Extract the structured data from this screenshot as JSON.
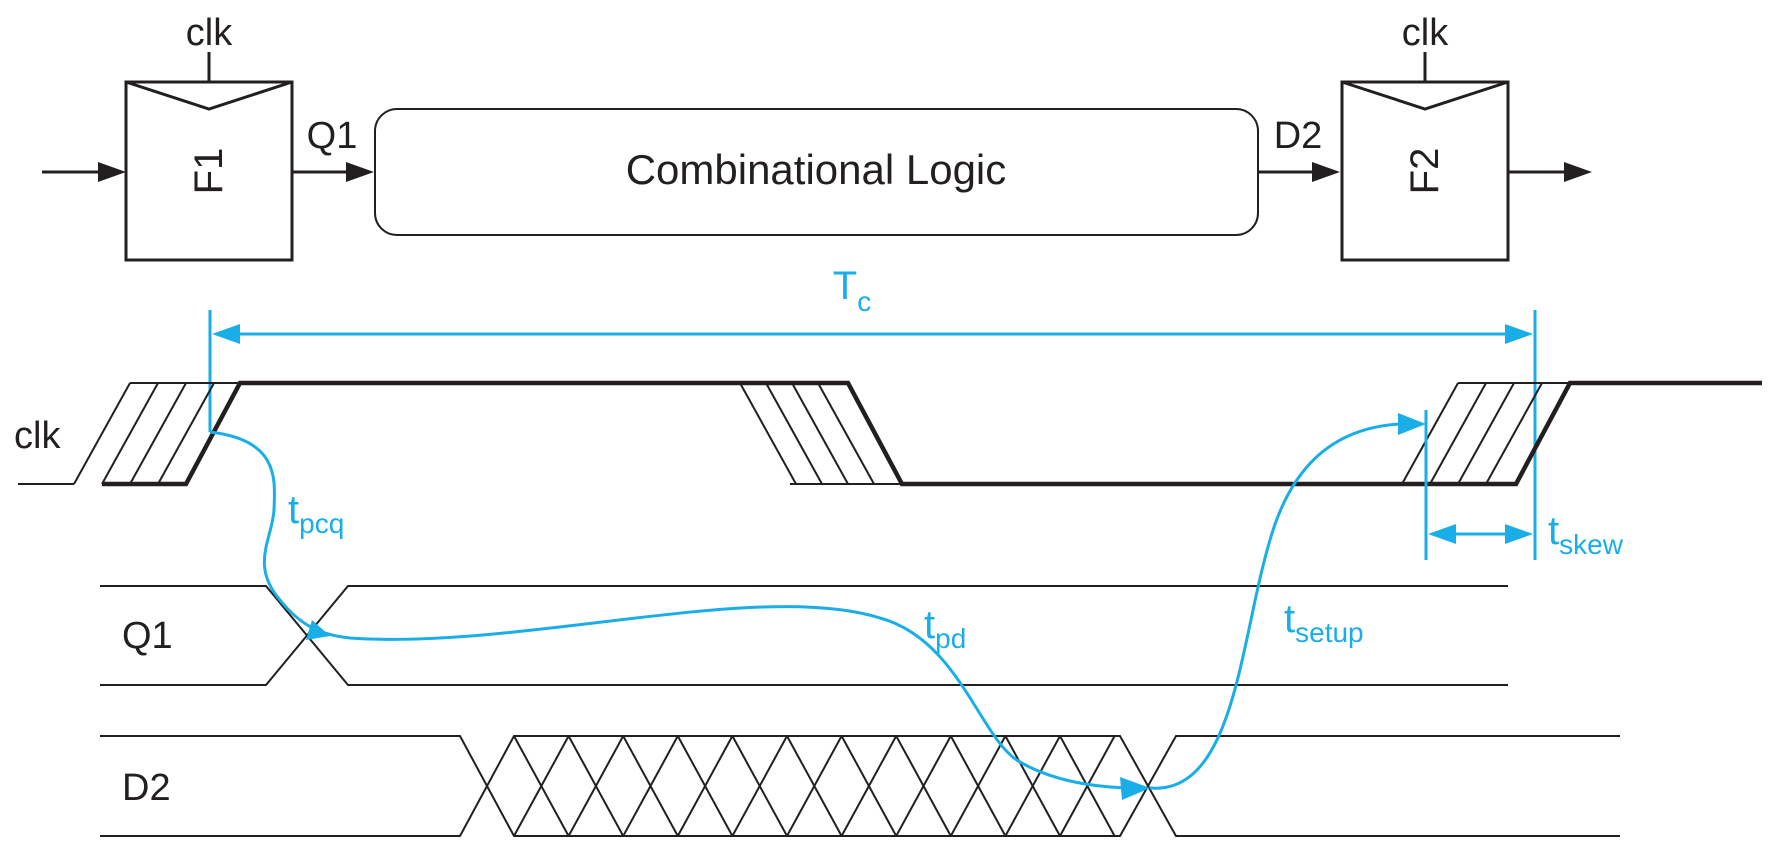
{
  "blocks": {
    "ff1": {
      "clock": "clk",
      "name": "F1"
    },
    "ff2": {
      "clock": "clk",
      "name": "F2"
    },
    "logic": "Combinational Logic",
    "q1_wire": "Q1",
    "d2_wire": "D2"
  },
  "timing": {
    "period": {
      "main": "T",
      "sub": "c"
    },
    "signals": {
      "clk": "clk",
      "q1": "Q1",
      "d2": "D2"
    },
    "tpcq": {
      "main": "t",
      "sub": "pcq"
    },
    "tpd": {
      "main": "t",
      "sub": "pd"
    },
    "tsetup": {
      "main": "t",
      "sub": "setup"
    },
    "tskew": {
      "main": "t",
      "sub": "skew"
    }
  },
  "colors": {
    "annotation": "#1aaee8",
    "line": "#231f20"
  }
}
